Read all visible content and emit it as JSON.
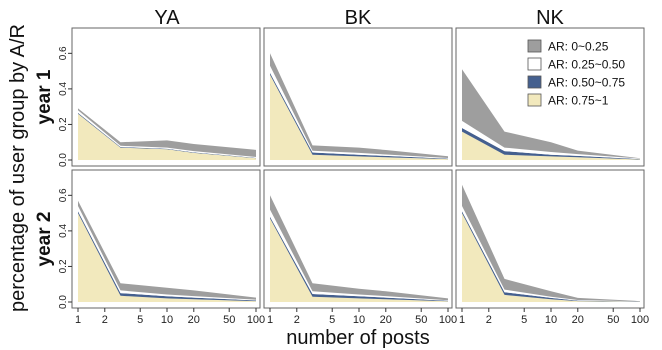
{
  "figure": {
    "ylabel": "percentage of user group by A/R",
    "xlabel": "number of posts",
    "columns": [
      "YA",
      "BK",
      "NK"
    ],
    "rows": [
      "year 1",
      "year 2"
    ]
  },
  "legend": {
    "placement": "top-right of NK year 1 panel",
    "entries": [
      {
        "label": "AR: 0~0.25",
        "color": "#9e9e9e"
      },
      {
        "label": "AR: 0.25~0.50",
        "color": "#ffffff"
      },
      {
        "label": "AR: 0.50~0.75",
        "color": "#45608f"
      },
      {
        "label": "AR: 0.75~1",
        "color": "#f2e9bd"
      }
    ]
  },
  "colors": {
    "ar_0_025": "#9e9e9e",
    "ar_025_050": "#ffffff",
    "ar_050_075": "#45608f",
    "ar_075_1": "#f2e9bd",
    "panel_border": "#666666"
  },
  "chart_data": {
    "type": "area",
    "layout": "stacked area small multiples (2 rows x 3 columns)",
    "x_scale": "log",
    "x": [
      1,
      3,
      10,
      20,
      100
    ],
    "x_ticks": [
      "1",
      "2",
      "5",
      "10",
      "20",
      "50",
      "100"
    ],
    "y_ticks": [
      "0.0",
      "0.2",
      "0.4",
      "0.6"
    ],
    "ylim": [
      0,
      0.72
    ],
    "grid": false,
    "stack_order": [
      "AR: 0.75~1",
      "AR: 0.50~0.75",
      "AR: 0.25~0.50",
      "AR: 0~0.25"
    ],
    "panels": [
      {
        "column": "YA",
        "row": "year 1",
        "series": [
          {
            "name": "AR: 0.75~1",
            "values": [
              0.26,
              0.07,
              0.06,
              0.04,
              0.01
            ]
          },
          {
            "name": "AR: 0.50~0.75",
            "values": [
              0.005,
              0.003,
              0.003,
              0.003,
              0.002
            ]
          },
          {
            "name": "AR: 0.25~0.50",
            "values": [
              0.015,
              0.007,
              0.007,
              0.007,
              0.005
            ]
          },
          {
            "name": "AR: 0~0.25",
            "values": [
              0.01,
              0.02,
              0.04,
              0.04,
              0.04
            ]
          }
        ]
      },
      {
        "column": "BK",
        "row": "year 1",
        "series": [
          {
            "name": "AR: 0.75~1",
            "values": [
              0.48,
              0.03,
              0.02,
              0.015,
              0.005
            ]
          },
          {
            "name": "AR: 0.50~0.75",
            "values": [
              0.01,
              0.012,
              0.01,
              0.008,
              0.003
            ]
          },
          {
            "name": "AR: 0.25~0.50",
            "values": [
              0.04,
              0.01,
              0.01,
              0.008,
              0.003
            ]
          },
          {
            "name": "AR: 0~0.25",
            "values": [
              0.07,
              0.03,
              0.03,
              0.025,
              0.01
            ]
          }
        ]
      },
      {
        "column": "NK",
        "row": "year 1",
        "series": [
          {
            "name": "AR: 0.75~1",
            "values": [
              0.16,
              0.03,
              0.02,
              0.015,
              0.003
            ]
          },
          {
            "name": "AR: 0.50~0.75",
            "values": [
              0.02,
              0.02,
              0.01,
              0.008,
              0.002
            ]
          },
          {
            "name": "AR: 0.25~0.50",
            "values": [
              0.04,
              0.02,
              0.015,
              0.01,
              0.003
            ]
          },
          {
            "name": "AR: 0~0.25",
            "values": [
              0.29,
              0.09,
              0.055,
              0.02,
              0.002
            ]
          }
        ]
      },
      {
        "column": "YA",
        "row": "year 2",
        "series": [
          {
            "name": "AR: 0.75~1",
            "values": [
              0.5,
              0.035,
              0.02,
              0.015,
              0.005
            ]
          },
          {
            "name": "AR: 0.50~0.75",
            "values": [
              0.01,
              0.015,
              0.012,
              0.01,
              0.004
            ]
          },
          {
            "name": "AR: 0.25~0.50",
            "values": [
              0.03,
              0.015,
              0.01,
              0.008,
              0.004
            ]
          },
          {
            "name": "AR: 0~0.25",
            "values": [
              0.03,
              0.04,
              0.038,
              0.032,
              0.012
            ]
          }
        ]
      },
      {
        "column": "BK",
        "row": "year 2",
        "series": [
          {
            "name": "AR: 0.75~1",
            "values": [
              0.47,
              0.03,
              0.02,
              0.015,
              0.004
            ]
          },
          {
            "name": "AR: 0.50~0.75",
            "values": [
              0.01,
              0.015,
              0.012,
              0.01,
              0.003
            ]
          },
          {
            "name": "AR: 0.25~0.50",
            "values": [
              0.04,
              0.015,
              0.01,
              0.008,
              0.003
            ]
          },
          {
            "name": "AR: 0~0.25",
            "values": [
              0.08,
              0.045,
              0.033,
              0.027,
              0.01
            ]
          }
        ]
      },
      {
        "column": "NK",
        "row": "year 2",
        "series": [
          {
            "name": "AR: 0.75~1",
            "values": [
              0.5,
              0.04,
              0.015,
              0.005,
              0.001
            ]
          },
          {
            "name": "AR: 0.50~0.75",
            "values": [
              0.01,
              0.015,
              0.008,
              0.003,
              0.001
            ]
          },
          {
            "name": "AR: 0.25~0.50",
            "values": [
              0.03,
              0.015,
              0.007,
              0.003,
              0.001
            ]
          },
          {
            "name": "AR: 0~0.25",
            "values": [
              0.12,
              0.06,
              0.03,
              0.012,
              0.002
            ]
          }
        ]
      }
    ]
  }
}
